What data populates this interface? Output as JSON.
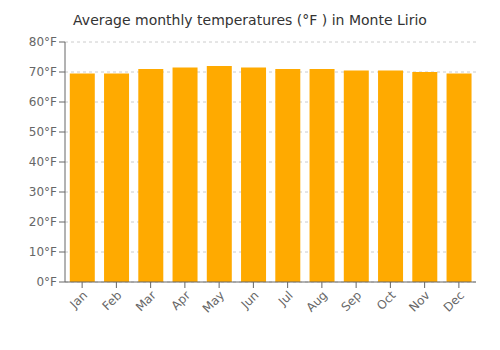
{
  "chart_data": {
    "type": "bar",
    "title": "Average monthly temperatures (°F ) in Monte Lirio",
    "categories": [
      "Jan",
      "Feb",
      "Mar",
      "Apr",
      "May",
      "Jun",
      "Jul",
      "Aug",
      "Sep",
      "Oct",
      "Nov",
      "Dec"
    ],
    "values": [
      69.5,
      69.5,
      71.0,
      71.5,
      72.0,
      71.5,
      71.0,
      71.0,
      70.5,
      70.5,
      70.0,
      69.5
    ],
    "color": "#FFAA00",
    "ylim": [
      0,
      80
    ],
    "yticks": [
      {
        "value": 0,
        "label": "0°F"
      },
      {
        "value": 10,
        "label": "10°F"
      },
      {
        "value": 20,
        "label": "20°F"
      },
      {
        "value": 30,
        "label": "30°F"
      },
      {
        "value": 40,
        "label": "40°F"
      },
      {
        "value": 50,
        "label": "50°F"
      },
      {
        "value": 60,
        "label": "60°F"
      },
      {
        "value": 70,
        "label": "70°F"
      },
      {
        "value": 80,
        "label": "80°F"
      }
    ],
    "grid": true
  }
}
